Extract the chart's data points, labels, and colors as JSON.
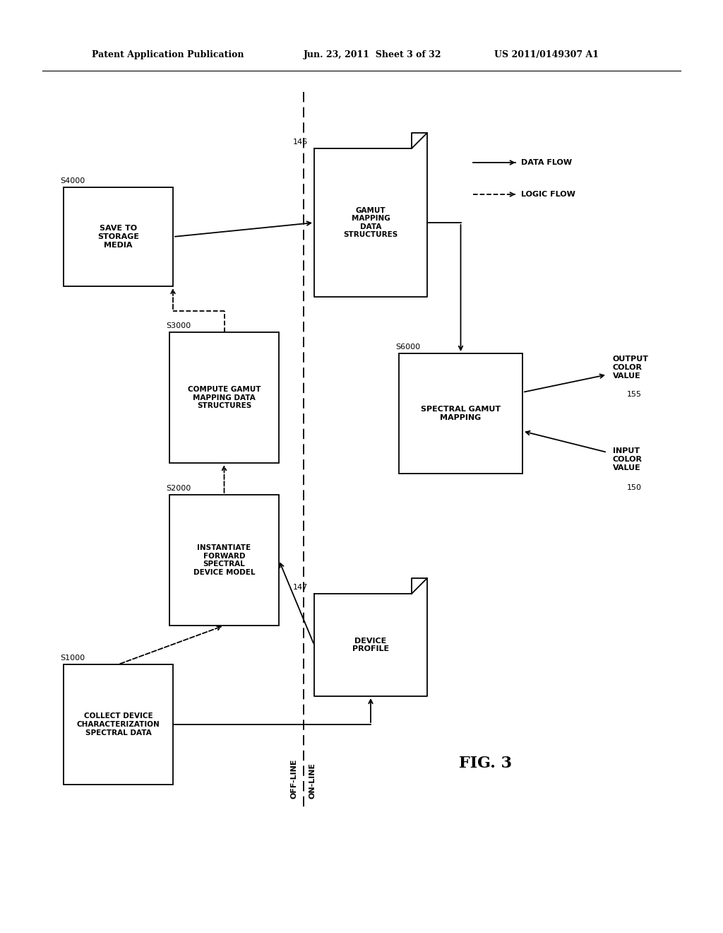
{
  "bg_color": "#ffffff",
  "header_left": "Patent Application Publication",
  "header_mid": "Jun. 23, 2011  Sheet 3 of 32",
  "header_right": "US 2011/0149307 A1",
  "fig_label": "FIG. 3",
  "s1000_label": "COLLECT DEVICE\nCHARACTERIZATION\nSPECTRAL DATA",
  "s2000_label": "INSTANTIATE\nFORWARD\nSPECTRAL\nDEVICE MODEL",
  "s3000_label": "COMPUTE GAMUT\nMAPPING DATA\nSTRUCTURES",
  "s4000_label": "SAVE TO\nSTORAGE\nMEDIA",
  "gamut_label": "GAMUT\nMAPPING\nDATA\nSTRUCTURES",
  "device_label": "DEVICE\nPROFILE",
  "s6000_label": "SPECTRAL GAMUT\nMAPPING",
  "output_label": "OUTPUT\nCOLOR\nVALUE",
  "input_label": "INPUT\nCOLOR\nVALUE",
  "data_flow_label": "DATA FLOW",
  "logic_flow_label": "LOGIC FLOW",
  "offline_label": "OFF-LINE",
  "online_label": "ON-LINE"
}
